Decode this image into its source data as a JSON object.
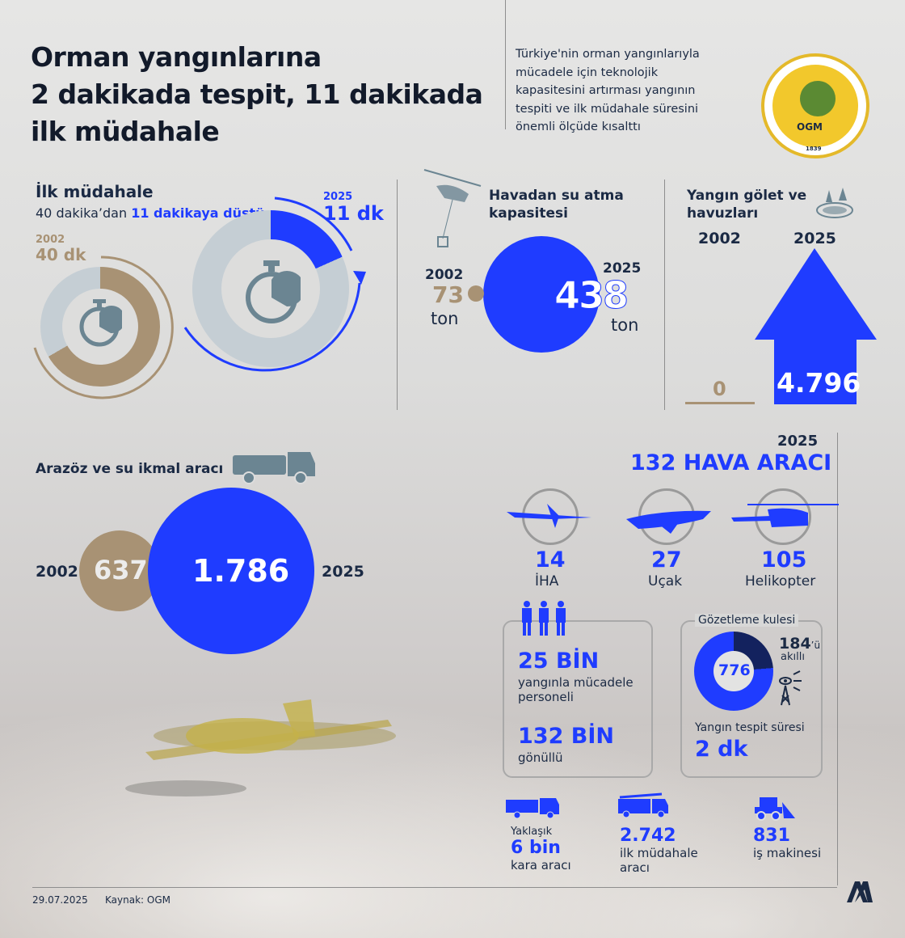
{
  "header": {
    "title_lines": [
      "Orman yangınlarına",
      "2 dakikada tespit, 11 dakikada",
      "ilk müdahale"
    ],
    "intro_lines": [
      "Türkiye'nin orman yangınlarıyla",
      "mücadele için teknolojik",
      "kapasitesini artırması yangının",
      "tespiti ve ilk müdahale süresini",
      "önemli ölçüde kısalttı"
    ],
    "logo_text": "ORMAN GENEL MÜDÜRLÜĞÜ",
    "logo_abbr": "OGM",
    "logo_year": "1839"
  },
  "first_response": {
    "title": "İlk müdahale",
    "subtitle_plain": "40 dakika’dan",
    "subtitle_bold": "11 dakikaya düştü",
    "y2002": "2002",
    "v2002": "40 dk",
    "y2025": "2025",
    "v2025": "11 dk",
    "minutes_2002": 40,
    "minutes_2025": 11
  },
  "air_water": {
    "title_lines": [
      "Havadan su atma",
      "kapasitesi"
    ],
    "y2002": "2002",
    "v2002": "73",
    "unit2002": "ton",
    "y2025": "2025",
    "v2025": "438",
    "unit2025": "ton"
  },
  "ponds": {
    "title_lines": [
      "Yangın gölet ve",
      "havuzları"
    ],
    "y2002": "2002",
    "v2002": "0",
    "y2025": "2025",
    "v2025": "4.796"
  },
  "trucks": {
    "title": "Arazöz ve su ikmal aracı",
    "y2002": "2002",
    "v2002": "637",
    "y2025": "2025",
    "v2025": "1.786"
  },
  "aircraft": {
    "year": "2025",
    "title": "132 HAVA ARACI",
    "items": [
      {
        "value": "14",
        "label": "İHA"
      },
      {
        "value": "27",
        "label": "Uçak"
      },
      {
        "value": "105",
        "label": "Helikopter"
      }
    ]
  },
  "personnel": {
    "v1": "25 BİN",
    "l1_lines": [
      "yangınla mücadele",
      "personeli"
    ],
    "v2": "132 BİN",
    "l2": "gönüllü"
  },
  "towers": {
    "title": "Gözetleme kulesi",
    "total": "776",
    "smart": "184",
    "smart_suffix": "’ü",
    "smart_label": "akıllı",
    "smart_count": 184,
    "total_count": 776,
    "detect_label": "Yangın tespit süresi",
    "detect_value": "2 dk"
  },
  "vehicles": [
    {
      "pre": "Yaklaşık",
      "value": "6 bin",
      "label_lines": [
        "kara aracı"
      ]
    },
    {
      "value": "2.742",
      "label_lines": [
        "ilk müdahale",
        "aracı"
      ]
    },
    {
      "value": "831",
      "label_lines": [
        "iş makinesi"
      ]
    }
  ],
  "footer": {
    "date": "29.07.2025",
    "source": "Kaynak: OGM",
    "brand": "AA"
  },
  "colors": {
    "blue": "#1f3cff",
    "tan": "#a89274",
    "navy": "#13225e",
    "ring": "#c5ced4"
  }
}
